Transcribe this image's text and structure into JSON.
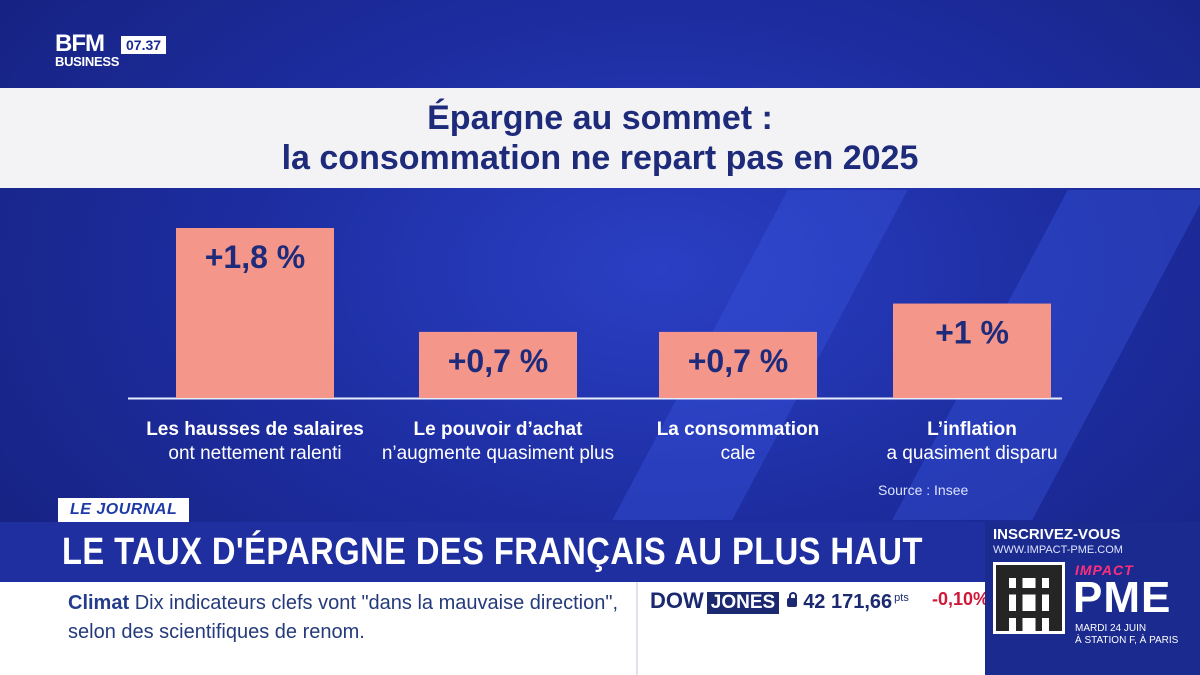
{
  "header": {
    "logo_main": "BFM",
    "logo_sub": "BUSINESS",
    "time": "07.37"
  },
  "title": {
    "line1": "Épargne au sommet :",
    "line2": "la consommation ne repart pas en 2025"
  },
  "chart_data": {
    "type": "bar",
    "title": "Épargne au sommet : la consommation ne repart pas en 2025",
    "categories": [
      [
        "Les hausses de salaires",
        "ont nettement ralenti"
      ],
      [
        "Le pouvoir d’achat",
        "n’augmente quasiment plus"
      ],
      [
        "La consommation",
        "cale"
      ],
      [
        "L’inflation",
        "a quasiment disparu"
      ]
    ],
    "values": [
      1.8,
      0.7,
      0.7,
      1.0
    ],
    "value_labels": [
      "+1,8 %",
      "+0,7 %",
      "+0,7 %",
      "+1 %"
    ],
    "unit": "%",
    "ylim": [
      0,
      1.8
    ],
    "grid": false,
    "bar_color": "#f4968a",
    "source": "Source : Insee"
  },
  "lower_third": {
    "tag": "LE JOURNAL",
    "headline": "LE TAUX D'ÉPARGNE DES FRANÇAIS AU PLUS HAUT",
    "news_keyword": "Climat",
    "news_text": "Dix indicateurs clefs vont \"dans la mauvaise direction\", selon des scientifiques de renom.",
    "market_name": "DOW",
    "market_name_box": "JONES",
    "market_value": "42 171,66",
    "market_unit": "pts",
    "market_change": "-0,10%"
  },
  "promo": {
    "title": "INSCRIVEZ-VOUS",
    "url": "WWW.IMPACT-PME.COM",
    "brand_top": "IMPACT",
    "brand_main": "PME",
    "date_line1": "MARDI 24 JUIN",
    "date_line2": "À STATION F, À PARIS"
  },
  "colors": {
    "accent": "#1b2a8f",
    "bar": "#f4968a",
    "title_text": "#1e2b7a",
    "negative": "#d0183a"
  }
}
